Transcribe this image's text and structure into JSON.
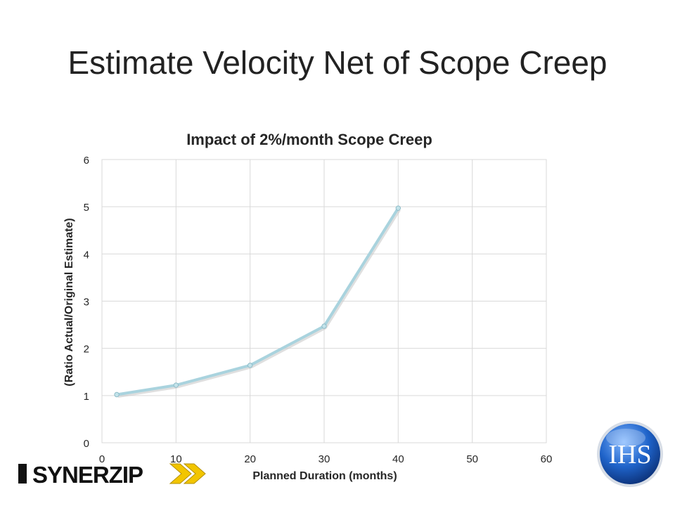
{
  "slide": {
    "title": "Estimate Velocity Net of Scope Creep"
  },
  "chart_data": {
    "type": "line",
    "title": "Impact of 2%/month Scope Creep",
    "xlabel": "Planned Duration (months)",
    "ylabel": "(Ratio Actual/Original Estimate)",
    "xlim": [
      0,
      60
    ],
    "ylim": [
      0,
      6
    ],
    "x_ticks": [
      0,
      10,
      20,
      30,
      40,
      50,
      60
    ],
    "y_ticks": [
      0,
      1,
      2,
      3,
      4,
      5,
      6
    ],
    "grid": true,
    "legend": "none",
    "series": [
      {
        "x": [
          2,
          10,
          20,
          30,
          40
        ],
        "values": [
          1.02,
          1.22,
          1.64,
          2.47,
          4.97
        ]
      }
    ],
    "colors": {
      "line": "#a9d3de",
      "line_shadow": "#c9c9c9",
      "grid": "#d9d9d9",
      "text": "#262626"
    }
  },
  "logos": {
    "synerzip": {
      "text": "SYNERZIP",
      "color_dark": "#111111",
      "color_accent": "#f2c500"
    },
    "ihs": {
      "text": "IHS",
      "color_blue": "#1a5fb4"
    }
  }
}
